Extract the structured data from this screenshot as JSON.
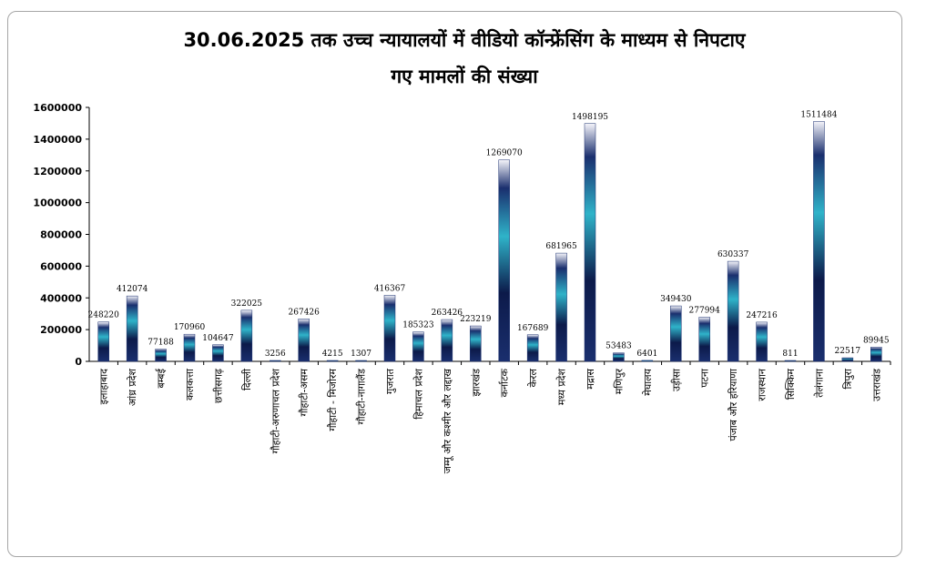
{
  "chart_data": {
    "type": "bar",
    "title_line1": "30.06.2025 तक उच्च न्यायालयों में वीडियो कॉन्फ्रेंसिंग के माध्यम से निपटाए",
    "title_line2": "गए मामलों की संख्या",
    "xlabel": "",
    "ylabel": "",
    "ylim": [
      0,
      1600000
    ],
    "yticks": [
      "0",
      "200000",
      "400000",
      "600000",
      "800000",
      "1000000",
      "1200000",
      "1400000",
      "1600000"
    ],
    "grid": false,
    "legend": "none",
    "bar_colors": {
      "top": "#f4f4fa",
      "dark": "#1a2f6e",
      "mid": "#2fb3c9",
      "deep": "#0c1a4a"
    },
    "categories": [
      "इलाहाबाद",
      "आंध्र प्रदेश",
      "बम्बई",
      "कलकत्ता",
      "छत्तीसगढ़",
      "दिल्ली",
      "गौहाटी-अरुणाचल प्रदेश",
      "गौहाटी-असम",
      "गौहाटी - मिजोरम",
      "गौहाटी-नागालैंड",
      "गुजरात",
      "हिमाचल प्रदेश",
      "जम्मू और कश्मीर और लद्दाख",
      "झारखंड",
      "कर्नाटक",
      "केरल",
      "मध्य प्रदेश",
      "मद्रास",
      "मणिपुर",
      "मेघालय",
      "उड़ीसा",
      "पटना",
      "पंजाब और हरियाणा",
      "राजस्थान",
      "सिक्किम",
      "तेलंगाना",
      "त्रिपुरा",
      "उत्तराखंड"
    ],
    "values": [
      248220,
      412074,
      77188,
      170960,
      104647,
      322025,
      3256,
      267426,
      4215,
      1307,
      416367,
      185323,
      263426,
      223219,
      1269070,
      167689,
      681965,
      1498195,
      53483,
      6401,
      349430,
      277994,
      630337,
      247216,
      811,
      1511484,
      22517,
      89945
    ]
  }
}
